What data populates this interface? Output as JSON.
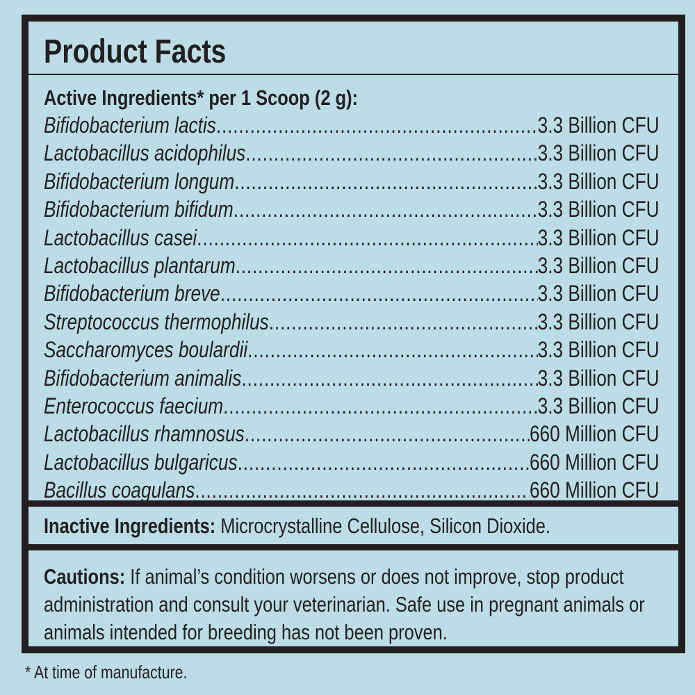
{
  "title": "Product Facts",
  "active_header": "Active Ingredients* per 1 Scoop (2 g):",
  "ingredients": [
    {
      "name": "Bifidobacterium lactis",
      "amount": "3.3 Billion CFU"
    },
    {
      "name": "Lactobacillus acidophilus",
      "amount": "3.3 Billion CFU"
    },
    {
      "name": "Bifidobacterium longum",
      "amount": "3.3 Billion CFU"
    },
    {
      "name": "Bifidobacterium bifidum",
      "amount": "3.3 Billion CFU"
    },
    {
      "name": "Lactobacillus casei",
      "amount": "3.3 Billion CFU"
    },
    {
      "name": "Lactobacillus plantarum",
      "amount": "3.3 Billion CFU"
    },
    {
      "name": "Bifidobacterium breve",
      "amount": "3.3 Billion CFU"
    },
    {
      "name": "Streptococcus thermophilus",
      "amount": "3.3 Billion CFU"
    },
    {
      "name": "Saccharomyces boulardii",
      "amount": "3.3 Billion CFU"
    },
    {
      "name": "Bifidobacterium animalis",
      "amount": "3.3 Billion CFU"
    },
    {
      "name": "Enterococcus faecium",
      "amount": "3.3 Billion CFU"
    },
    {
      "name": "Lactobacillus rhamnosus",
      "amount": "660 Million CFU"
    },
    {
      "name": "Lactobacillus bulgaricus",
      "amount": "660 Million CFU"
    },
    {
      "name": "Bacillus coagulans",
      "amount": "660 Million CFU"
    }
  ],
  "inactive": {
    "label": "Inactive Ingredients:",
    "text": " Microcrystalline Cellulose, Silicon Dioxide."
  },
  "cautions": {
    "label": "Cautions:",
    "text": " If animal’s condition worsens or does not improve, stop product administration and consult your veterinarian. Safe use in pregnant animals or animals intended for breeding has not been proven."
  },
  "footnote": "* At time of manufacture.",
  "colors": {
    "background": "#bcdce6",
    "text": "#231f20"
  }
}
